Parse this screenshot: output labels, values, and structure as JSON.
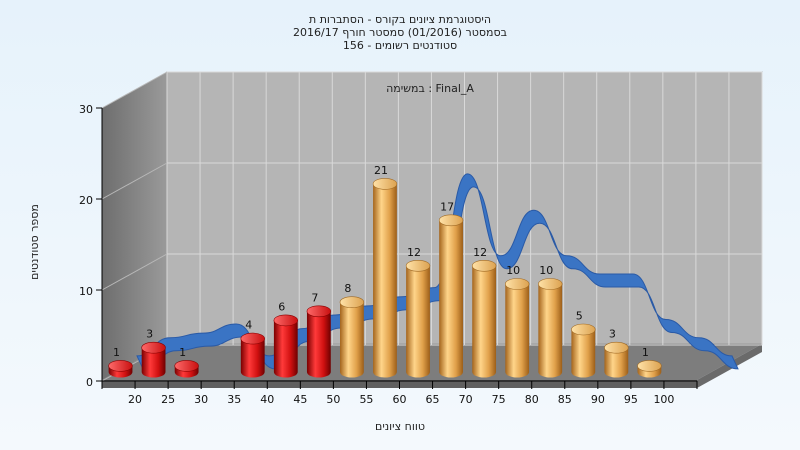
{
  "chart_data": {
    "type": "bar",
    "title_lines": [
      "היסטוגרמת ציונים בקורס - הסתברות ת",
      "בסמסטר  (01/2016)  סמסטר חורף 2016/17",
      "סטודנטים רשומים - 156"
    ],
    "annotation": "במשימה : Final_A",
    "xlabel": "טווח ציונים",
    "ylabel": "מספר סטודנטים",
    "categories": [
      "20",
      "25",
      "30",
      "35",
      "40",
      "45",
      "50",
      "55",
      "60",
      "65",
      "70",
      "75",
      "80",
      "85",
      "90",
      "95",
      "100"
    ],
    "bars": [
      {
        "label": "20",
        "value": 1,
        "color": "red"
      },
      {
        "label": "25",
        "value": 3,
        "color": "red"
      },
      {
        "label": "30",
        "value": 1,
        "color": "red"
      },
      {
        "label": "40",
        "value": 4,
        "color": "red"
      },
      {
        "label": "45",
        "value": 6,
        "color": "red"
      },
      {
        "label": "50",
        "value": 7,
        "color": "red"
      },
      {
        "label": "55",
        "value": 8,
        "color": "orange"
      },
      {
        "label": "60",
        "value": 21,
        "color": "orange"
      },
      {
        "label": "65",
        "value": 12,
        "color": "orange"
      },
      {
        "label": "70",
        "value": 17,
        "color": "orange"
      },
      {
        "label": "75",
        "value": 12,
        "color": "orange"
      },
      {
        "label": "80",
        "value": 10,
        "color": "orange"
      },
      {
        "label": "85",
        "value": 10,
        "color": "orange"
      },
      {
        "label": "90",
        "value": 5,
        "color": "orange"
      },
      {
        "label": "95",
        "value": 3,
        "color": "orange"
      },
      {
        "label": "100",
        "value": 1,
        "color": "orange"
      }
    ],
    "line_values": [
      1,
      3,
      3.5,
      4.5,
      1,
      4,
      5.5,
      6.5,
      7.5,
      8.5,
      21,
      12,
      17,
      12,
      10,
      10,
      5,
      3,
      1
    ],
    "yticks": [
      0,
      10,
      20,
      30
    ],
    "ylim": [
      0,
      30
    ],
    "grid": true,
    "colors": {
      "red": "#d81b1b",
      "orange": "#e3a246",
      "line": "#3a74c4",
      "wall_back": "#b4b4b4",
      "wall_side": "#8a8a8a",
      "floor": "#7b7b7b"
    }
  }
}
